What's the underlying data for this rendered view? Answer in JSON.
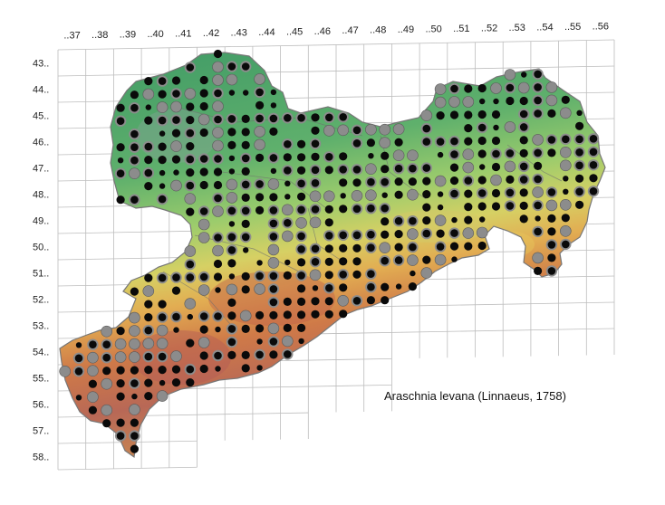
{
  "map": {
    "species_caption": "Araschnia levana (Linnaeus, 1758)",
    "column_labels": [
      "..37",
      "..38",
      "..39",
      "..40",
      "..41",
      "..42",
      "..43",
      "..44",
      "..45",
      "..46",
      "..47",
      "..48",
      "..49",
      "..50",
      "..51",
      "..52",
      "..53",
      "..54",
      "..55",
      "..56"
    ],
    "row_labels": [
      "43..",
      "44..",
      "45..",
      "46..",
      "47..",
      "48..",
      "49..",
      "50..",
      "51..",
      "52..",
      "53..",
      "54..",
      "55..",
      "56..",
      "57..",
      "58.."
    ],
    "marker_types": {
      "recent": "black filled circle",
      "older": "grey filled circle",
      "both": "black circle with grey ring"
    },
    "colors": {
      "grid_line": "#bdbdbd",
      "border": "#8a8a8a",
      "lowland": "#4aa36a",
      "low_hills": "#7cc06e",
      "hills": "#c9d46a",
      "upland": "#e0b454",
      "mountain": "#cf7a48",
      "high_mountain": "#b5665a",
      "marker_recent": "#0a0a0a",
      "marker_older": "#8c8c8c"
    }
  }
}
